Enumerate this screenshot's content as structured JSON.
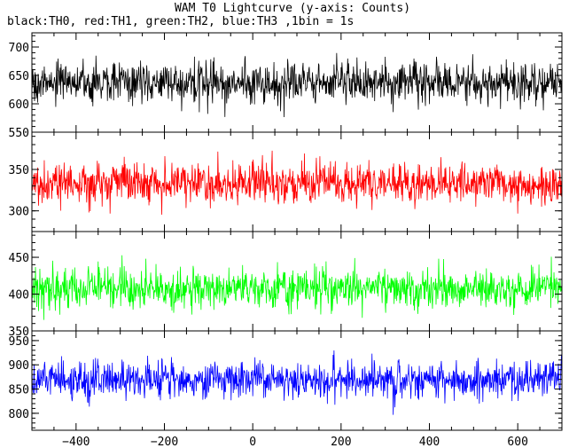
{
  "chart_data": {
    "type": "line",
    "title": "WAM T0 Lightcurve (y-axis: Counts)",
    "subtitle": "black:TH0, red:TH1, green:TH2, blue:TH3 ,1bin = 1s",
    "x_range": [
      -500,
      700
    ],
    "x_ticks": [
      -400,
      -200,
      0,
      200,
      400,
      600
    ],
    "panels": [
      {
        "series": "TH0",
        "color": "#000000",
        "ylim": [
          550,
          725
        ],
        "y_ticks": [
          550,
          600,
          650,
          700
        ],
        "mean": 637,
        "amplitude": 32
      },
      {
        "series": "TH1",
        "color": "#ff0000",
        "ylim": [
          275,
          395
        ],
        "y_ticks": [
          300,
          350
        ],
        "mean": 333,
        "amplitude": 22
      },
      {
        "series": "TH2",
        "color": "#00ff00",
        "ylim": [
          350,
          485
        ],
        "y_ticks": [
          350,
          400,
          450
        ],
        "mean": 408,
        "amplitude": 24
      },
      {
        "series": "TH3",
        "color": "#0000ff",
        "ylim": [
          765,
          970
        ],
        "y_ticks": [
          800,
          850,
          900,
          950
        ],
        "mean": 868,
        "amplitude": 34
      }
    ]
  }
}
